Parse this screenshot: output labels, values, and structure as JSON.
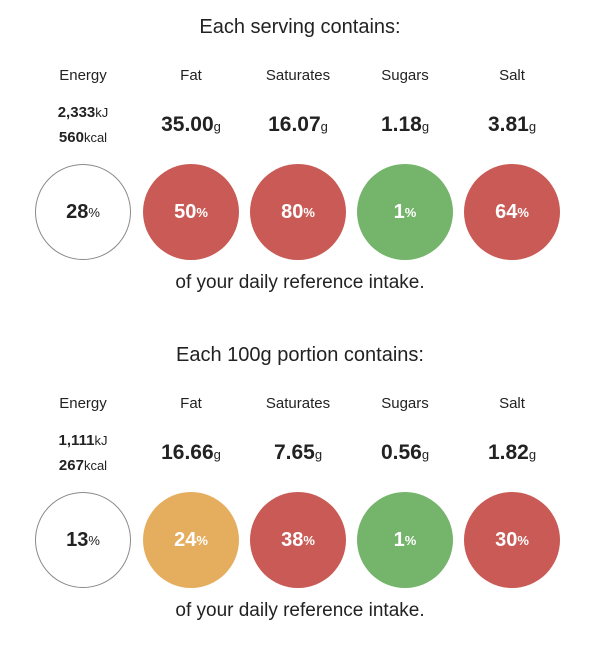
{
  "colors": {
    "red": "#c95a55",
    "amber": "#e5ae5f",
    "green": "#74b56b",
    "white": "#ffffff"
  },
  "panels": [
    {
      "heading": "Each serving contains:",
      "energy": {
        "label": "Energy",
        "kj": "2,333",
        "kj_unit": "kJ",
        "kcal": "560",
        "kcal_unit": "kcal",
        "percent": "28",
        "pct_unit": "%",
        "level": "white"
      },
      "fat": {
        "label": "Fat",
        "value": "35.00",
        "unit": "g",
        "percent": "50",
        "pct_unit": "%",
        "level": "red"
      },
      "saturates": {
        "label": "Saturates",
        "value": "16.07",
        "unit": "g",
        "percent": "80",
        "pct_unit": "%",
        "level": "red"
      },
      "sugars": {
        "label": "Sugars",
        "value": "1.18",
        "unit": "g",
        "percent": "1",
        "pct_unit": "%",
        "level": "green"
      },
      "salt": {
        "label": "Salt",
        "value": "3.81",
        "unit": "g",
        "percent": "64",
        "pct_unit": "%",
        "level": "red"
      },
      "footer": "of your daily reference intake."
    },
    {
      "heading": "Each 100g portion contains:",
      "energy": {
        "label": "Energy",
        "kj": "1,111",
        "kj_unit": "kJ",
        "kcal": "267",
        "kcal_unit": "kcal",
        "percent": "13",
        "pct_unit": "%",
        "level": "white"
      },
      "fat": {
        "label": "Fat",
        "value": "16.66",
        "unit": "g",
        "percent": "24",
        "pct_unit": "%",
        "level": "amber"
      },
      "saturates": {
        "label": "Saturates",
        "value": "7.65",
        "unit": "g",
        "percent": "38",
        "pct_unit": "%",
        "level": "red"
      },
      "sugars": {
        "label": "Sugars",
        "value": "0.56",
        "unit": "g",
        "percent": "1",
        "pct_unit": "%",
        "level": "green"
      },
      "salt": {
        "label": "Salt",
        "value": "1.82",
        "unit": "g",
        "percent": "30",
        "pct_unit": "%",
        "level": "red"
      },
      "footer": "of your daily reference intake."
    }
  ]
}
